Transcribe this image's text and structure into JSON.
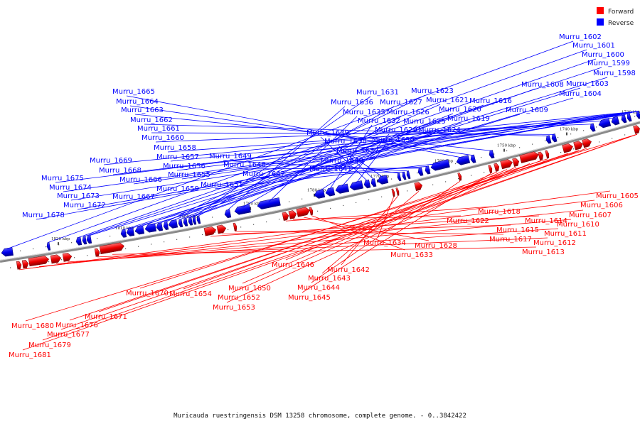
{
  "caption": "Muricauda ruestringensis DSM 13258 chromosome, complete genome. - 0..3842422",
  "legend": [
    {
      "label": "Forward",
      "color": "#ff0000"
    },
    {
      "label": "Reverse",
      "color": "#0000ff"
    }
  ],
  "colors": {
    "forward": "#ff0000",
    "reverse": "#0000ff",
    "backbone": "#8a8a8a"
  },
  "ticks": [
    "1730 kbp",
    "1740 kbp",
    "1750 kbp",
    "1760 kbp",
    "1770 kbp",
    "1780 kbp",
    "1790 kbp",
    "1800 kbp",
    "1810 kbp",
    "1820 kbp"
  ],
  "reverse_genes": [
    "Murru_1602",
    "Murru_1601",
    "Murru_1600",
    "Murru_1599",
    "Murru_1598",
    "Murru_1603",
    "Murru_1604",
    "Murru_1608",
    "Murru_1609",
    "Murru_1616",
    "Murru_1623",
    "Murru_1621",
    "Murru_1620",
    "Murru_1619",
    "Murru_1624",
    "Murru_1631",
    "Murru_1627",
    "Murru_1636",
    "Murru_1626",
    "Murru_1635",
    "Murru_1625",
    "Murru_1632",
    "Murru_1629",
    "Murru_1630",
    "Murru_1639",
    "Murru_1638",
    "Murru_1637",
    "Murru_1640",
    "Murru_1641",
    "Murru_1649",
    "Murru_1648",
    "Murru_1647",
    "Murru_1651",
    "Murru_1665",
    "Murru_1664",
    "Murru_1663",
    "Murru_1662",
    "Murru_1661",
    "Murru_1660",
    "Murru_1658",
    "Murru_1657",
    "Murru_1656",
    "Murru_1655",
    "Murru_1659",
    "Murru_1669",
    "Murru_1668",
    "Murru_1666",
    "Murru_1667",
    "Murru_1675",
    "Murru_1674",
    "Murru_1673",
    "Murru_1672",
    "Murru_1678"
  ],
  "forward_genes": [
    "Murru_1605",
    "Murru_1606",
    "Murru_1607",
    "Murru_1610",
    "Murru_1611",
    "Murru_1612",
    "Murru_1613",
    "Murru_1614",
    "Murru_1615",
    "Murru_1617",
    "Murru_1618",
    "Murru_1622",
    "Murru_1628",
    "Murru_1633",
    "Murru_1634",
    "Murru_1642",
    "Murru_1643",
    "Murru_1644",
    "Murru_1645",
    "Murru_1646",
    "Murru_1650",
    "Murru_1652",
    "Murru_1653",
    "Murru_1654",
    "Murru_1670",
    "Murru_1671",
    "Murru_1676",
    "Murru_1677",
    "Murru_1679",
    "Murru_1680",
    "Murru_1681"
  ]
}
